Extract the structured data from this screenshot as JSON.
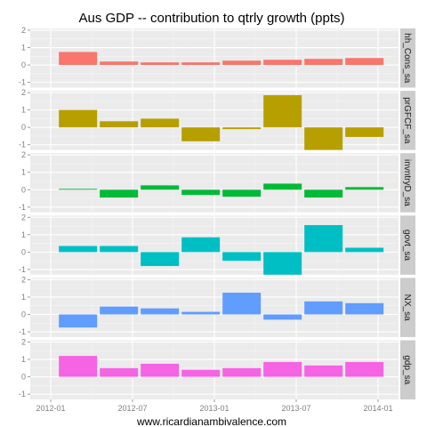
{
  "chart_data": {
    "type": "bar",
    "title": "Aus GDP -- contribution to qtrly growth (ppts)",
    "xlabel": "www.ricardianambivalence.com",
    "ylabel": "",
    "facet_layout": "vertical, strip labels on right",
    "x": [
      "2012-03",
      "2012-06",
      "2012-09",
      "2012-12",
      "2013-03",
      "2013-06",
      "2013-09",
      "2013-12"
    ],
    "x_ticks": [
      "2012-01",
      "2012-07",
      "2013-01",
      "2013-07",
      "2014-01"
    ],
    "x_range": [
      "2012-01",
      "2014-01"
    ],
    "ylim": [
      -1.3,
      2.1
    ],
    "y_ticks": [
      -1,
      0,
      1,
      2
    ],
    "grid": true,
    "legend": "none",
    "series": [
      {
        "name": "hh_Cons_sa",
        "color": "#F8766D",
        "values": [
          0.75,
          0.2,
          0.15,
          0.15,
          0.25,
          0.3,
          0.35,
          0.4
        ]
      },
      {
        "name": "prGFCF_sa",
        "color": "#B79F00",
        "values": [
          1.0,
          0.35,
          0.5,
          -0.8,
          -0.1,
          1.85,
          -1.3,
          -0.55
        ]
      },
      {
        "name": "invntryD_sa",
        "color": "#00BA38",
        "values": [
          0.05,
          -0.45,
          0.25,
          -0.3,
          -0.4,
          0.35,
          -0.45,
          0.15
        ]
      },
      {
        "name": "govt_sa",
        "color": "#00BFC4",
        "values": [
          0.35,
          0.35,
          -0.8,
          0.85,
          -0.5,
          -1.3,
          1.55,
          0.25
        ]
      },
      {
        "name": "NX_sa",
        "color": "#619CFF",
        "values": [
          -0.75,
          0.45,
          0.35,
          0.15,
          1.25,
          -0.3,
          0.75,
          0.65
        ]
      },
      {
        "name": "gdp_sa",
        "color": "#F564E3",
        "values": [
          1.2,
          0.5,
          0.75,
          0.4,
          0.5,
          0.85,
          0.65,
          0.85
        ]
      }
    ]
  }
}
